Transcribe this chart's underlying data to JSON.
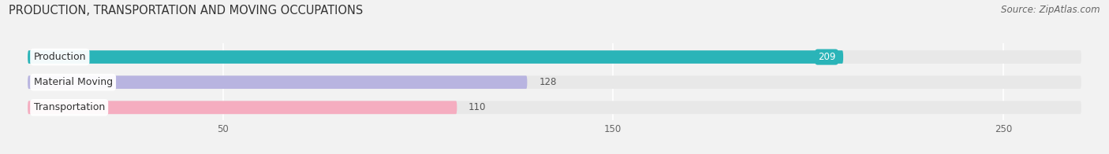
{
  "title": "PRODUCTION, TRANSPORTATION AND MOVING OCCUPATIONS",
  "source": "Source: ZipAtlas.com",
  "categories": [
    "Production",
    "Material Moving",
    "Transportation"
  ],
  "values": [
    209,
    128,
    110
  ],
  "bar_colors": [
    "#2ab4b8",
    "#b8b4e0",
    "#f5adc0"
  ],
  "xlim": [
    0,
    270
  ],
  "xticks": [
    50,
    150,
    250
  ],
  "fig_bg": "#f2f2f2",
  "bar_bg": "#e4e4e4",
  "track_color": "#e8e8e8",
  "title_fontsize": 10.5,
  "source_fontsize": 8.5,
  "label_fontsize": 9,
  "value_fontsize": 8.5,
  "bar_height": 0.52,
  "figsize": [
    14.06,
    1.96
  ],
  "dpi": 100
}
